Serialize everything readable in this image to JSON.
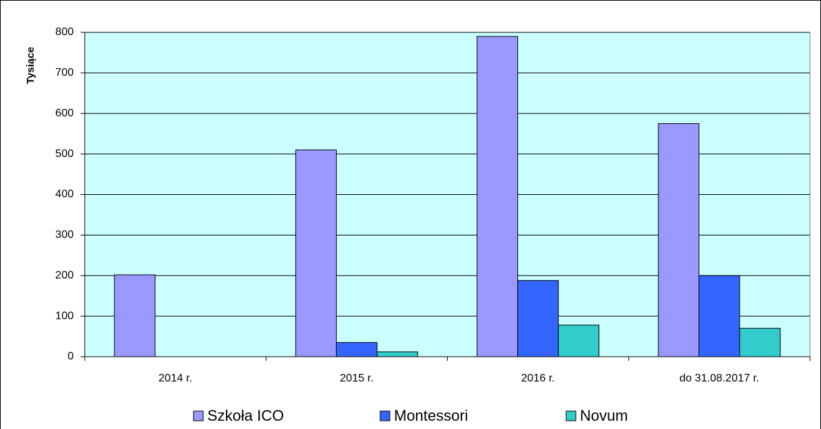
{
  "chart_data": {
    "type": "bar",
    "y_label": "Tysiące",
    "categories": [
      "2014 r.",
      "2015 r.",
      "2016 r.",
      "do 31.08.2017 r."
    ],
    "series": [
      {
        "name": "Szkoła ICO",
        "color": "#9999ff",
        "values": [
          202,
          510,
          790,
          575
        ]
      },
      {
        "name": "Montessori",
        "color": "#3366ff",
        "values": [
          null,
          35,
          188,
          200
        ]
      },
      {
        "name": "Novum",
        "color": "#33cccc",
        "values": [
          null,
          12,
          78,
          70
        ]
      }
    ],
    "ylim": [
      0,
      800
    ],
    "yticks": [
      0,
      100,
      200,
      300,
      400,
      500,
      600,
      700,
      800
    ],
    "grid": true,
    "legend": "bottom"
  }
}
